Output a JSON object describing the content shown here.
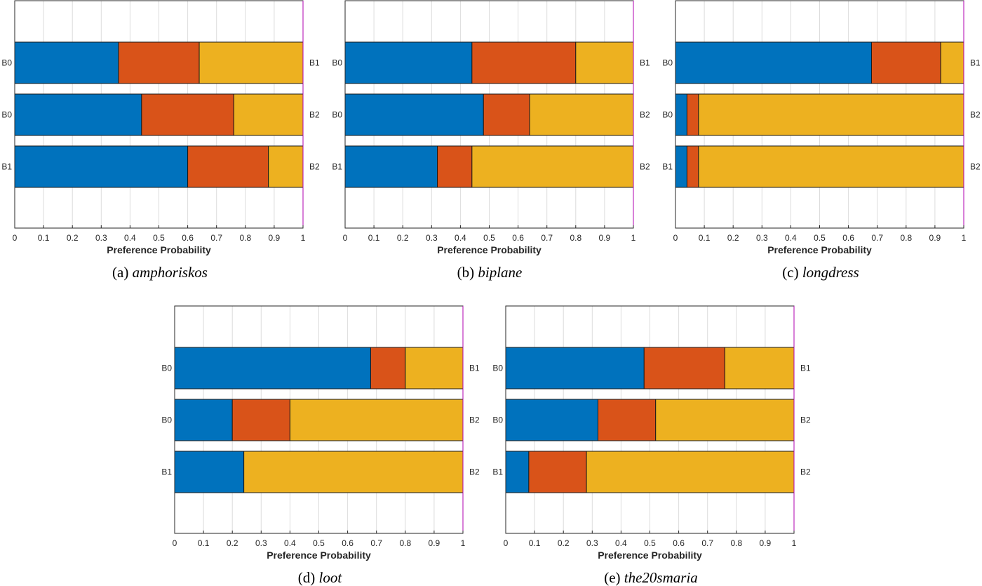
{
  "chart_data": [
    {
      "type": "bar",
      "orientation": "horizontal-stacked",
      "caption_prefix": "(a)",
      "caption_name": "amphoriskos",
      "xlabel": "Preference Probability",
      "xlim": [
        0,
        1
      ],
      "xticks": [
        "0",
        "0.1",
        "0.2",
        "0.3",
        "0.4",
        "0.5",
        "0.6",
        "0.7",
        "0.8",
        "0.9",
        "1"
      ],
      "grid": true,
      "series_colors": [
        "#0072BD",
        "#D95319",
        "#EDB120"
      ],
      "bars": [
        {
          "left": "B0",
          "right": "B1",
          "values": [
            0.36,
            0.28,
            0.36
          ]
        },
        {
          "left": "B0",
          "right": "B2",
          "values": [
            0.44,
            0.32,
            0.24
          ]
        },
        {
          "left": "B1",
          "right": "B2",
          "values": [
            0.6,
            0.28,
            0.12
          ]
        }
      ]
    },
    {
      "type": "bar",
      "orientation": "horizontal-stacked",
      "caption_prefix": "(b)",
      "caption_name": "biplane",
      "xlabel": "Preference Probability",
      "xlim": [
        0,
        1
      ],
      "xticks": [
        "0",
        "0.1",
        "0.2",
        "0.3",
        "0.4",
        "0.5",
        "0.6",
        "0.7",
        "0.8",
        "0.9",
        "1"
      ],
      "grid": true,
      "series_colors": [
        "#0072BD",
        "#D95319",
        "#EDB120"
      ],
      "bars": [
        {
          "left": "B0",
          "right": "B1",
          "values": [
            0.44,
            0.36,
            0.2
          ]
        },
        {
          "left": "B0",
          "right": "B2",
          "values": [
            0.48,
            0.16,
            0.36
          ]
        },
        {
          "left": "B1",
          "right": "B2",
          "values": [
            0.32,
            0.12,
            0.56
          ]
        }
      ]
    },
    {
      "type": "bar",
      "orientation": "horizontal-stacked",
      "caption_prefix": "(c)",
      "caption_name": "longdress",
      "xlabel": "Preference Probability",
      "xlim": [
        0,
        1
      ],
      "xticks": [
        "0",
        "0.1",
        "0.2",
        "0.3",
        "0.4",
        "0.5",
        "0.6",
        "0.7",
        "0.8",
        "0.9",
        "1"
      ],
      "grid": true,
      "series_colors": [
        "#0072BD",
        "#D95319",
        "#EDB120"
      ],
      "bars": [
        {
          "left": "B0",
          "right": "B1",
          "values": [
            0.68,
            0.24,
            0.08
          ]
        },
        {
          "left": "B0",
          "right": "B2",
          "values": [
            0.04,
            0.04,
            0.92
          ]
        },
        {
          "left": "B1",
          "right": "B2",
          "values": [
            0.04,
            0.04,
            0.92
          ]
        }
      ]
    },
    {
      "type": "bar",
      "orientation": "horizontal-stacked",
      "caption_prefix": "(d)",
      "caption_name": "loot",
      "xlabel": "Preference Probability",
      "xlim": [
        0,
        1
      ],
      "xticks": [
        "0",
        "0.1",
        "0.2",
        "0.3",
        "0.4",
        "0.5",
        "0.6",
        "0.7",
        "0.8",
        "0.9",
        "1"
      ],
      "grid": true,
      "series_colors": [
        "#0072BD",
        "#D95319",
        "#EDB120"
      ],
      "bars": [
        {
          "left": "B0",
          "right": "B1",
          "values": [
            0.68,
            0.12,
            0.2
          ]
        },
        {
          "left": "B0",
          "right": "B2",
          "values": [
            0.2,
            0.2,
            0.6
          ]
        },
        {
          "left": "B1",
          "right": "B2",
          "values": [
            0.24,
            0.0,
            0.76
          ]
        }
      ]
    },
    {
      "type": "bar",
      "orientation": "horizontal-stacked",
      "caption_prefix": "(e)",
      "caption_name": "the20smaria",
      "xlabel": "Preference Probability",
      "xlim": [
        0,
        1
      ],
      "xticks": [
        "0",
        "0.1",
        "0.2",
        "0.3",
        "0.4",
        "0.5",
        "0.6",
        "0.7",
        "0.8",
        "0.9",
        "1"
      ],
      "grid": true,
      "series_colors": [
        "#0072BD",
        "#D95319",
        "#EDB120"
      ],
      "bars": [
        {
          "left": "B0",
          "right": "B1",
          "values": [
            0.48,
            0.28,
            0.24
          ]
        },
        {
          "left": "B0",
          "right": "B2",
          "values": [
            0.32,
            0.2,
            0.48
          ]
        },
        {
          "left": "B1",
          "right": "B2",
          "values": [
            0.08,
            0.2,
            0.72
          ]
        }
      ]
    }
  ]
}
